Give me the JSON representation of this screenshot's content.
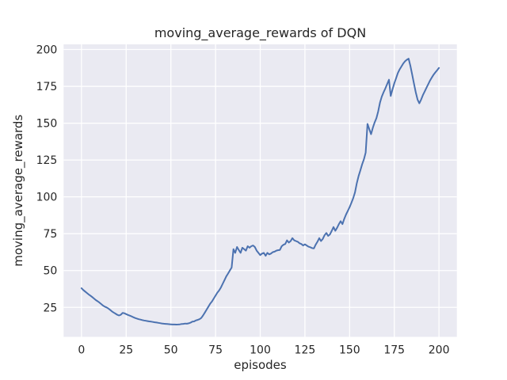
{
  "chart_data": {
    "type": "line",
    "title": "moving_average_rewards of DQN",
    "xlabel": "episodes",
    "ylabel": "moving_average_rewards",
    "x_ticks": [
      0,
      25,
      50,
      75,
      100,
      125,
      150,
      175,
      200
    ],
    "y_ticks": [
      25,
      50,
      75,
      100,
      125,
      150,
      175,
      200
    ],
    "xlim": [
      -10,
      210
    ],
    "ylim": [
      5,
      203.5
    ],
    "grid": true,
    "legend_position": "none",
    "plot_background": "#eaeaf2",
    "grid_color": "#ffffff",
    "series": [
      {
        "name": "moving_average_rewards",
        "color": "#4c72b0",
        "x_start": 0,
        "x_step": 1,
        "values": [
          38.0,
          36.8,
          35.8,
          34.8,
          33.8,
          33.0,
          32.0,
          31.0,
          30.0,
          29.2,
          28.3,
          27.3,
          26.3,
          25.5,
          25.0,
          24.3,
          23.3,
          22.3,
          21.5,
          20.8,
          20.0,
          19.5,
          20.0,
          21.3,
          21.0,
          20.4,
          19.9,
          19.4,
          18.9,
          18.3,
          17.8,
          17.4,
          17.0,
          16.7,
          16.4,
          16.1,
          15.9,
          15.7,
          15.5,
          15.3,
          15.1,
          14.9,
          14.7,
          14.5,
          14.3,
          14.1,
          13.9,
          13.8,
          13.7,
          13.6,
          13.5,
          13.4,
          13.4,
          13.3,
          13.4,
          13.5,
          13.7,
          13.8,
          14.0,
          13.9,
          14.2,
          14.6,
          15.3,
          15.5,
          16.2,
          16.5,
          17.0,
          17.8,
          19.5,
          21.5,
          23.5,
          25.5,
          27.5,
          29.0,
          31.0,
          33.0,
          35.0,
          36.5,
          38.5,
          41.0,
          43.5,
          46.0,
          48.0,
          50.0,
          52.0,
          64.5,
          62.0,
          66.0,
          64.0,
          62.0,
          65.5,
          64.5,
          63.5,
          66.5,
          65.5,
          66.5,
          67.0,
          66.0,
          63.5,
          62.0,
          60.5,
          61.5,
          62.0,
          60.0,
          62.0,
          61.0,
          61.5,
          62.5,
          62.8,
          63.5,
          63.8,
          64.0,
          66.5,
          67.5,
          68.0,
          70.5,
          69.0,
          70.0,
          72.0,
          70.5,
          70.0,
          69.5,
          68.5,
          68.0,
          67.0,
          67.8,
          67.0,
          66.2,
          65.8,
          65.2,
          65.0,
          67.5,
          69.5,
          72.0,
          70.0,
          71.5,
          74.0,
          75.5,
          73.5,
          74.5,
          77.0,
          79.5,
          77.0,
          79.0,
          81.5,
          83.5,
          81.5,
          85.0,
          88.0,
          90.5,
          93.0,
          96.0,
          99.0,
          103.0,
          109.0,
          114.0,
          118.0,
          122.0,
          125.5,
          130.0,
          149.5,
          146.0,
          142.5,
          147.0,
          150.5,
          153.5,
          158.0,
          164.0,
          168.0,
          171.0,
          173.5,
          176.5,
          179.5,
          168.5,
          173.0,
          177.0,
          180.5,
          184.0,
          186.5,
          188.5,
          190.5,
          192.0,
          193.0,
          193.8,
          189.0,
          183.0,
          177.0,
          171.0,
          166.0,
          163.5,
          166.0,
          169.0,
          171.5,
          174.0,
          176.5,
          179.0,
          181.0,
          183.0,
          184.5,
          186.0,
          187.5
        ]
      }
    ]
  }
}
